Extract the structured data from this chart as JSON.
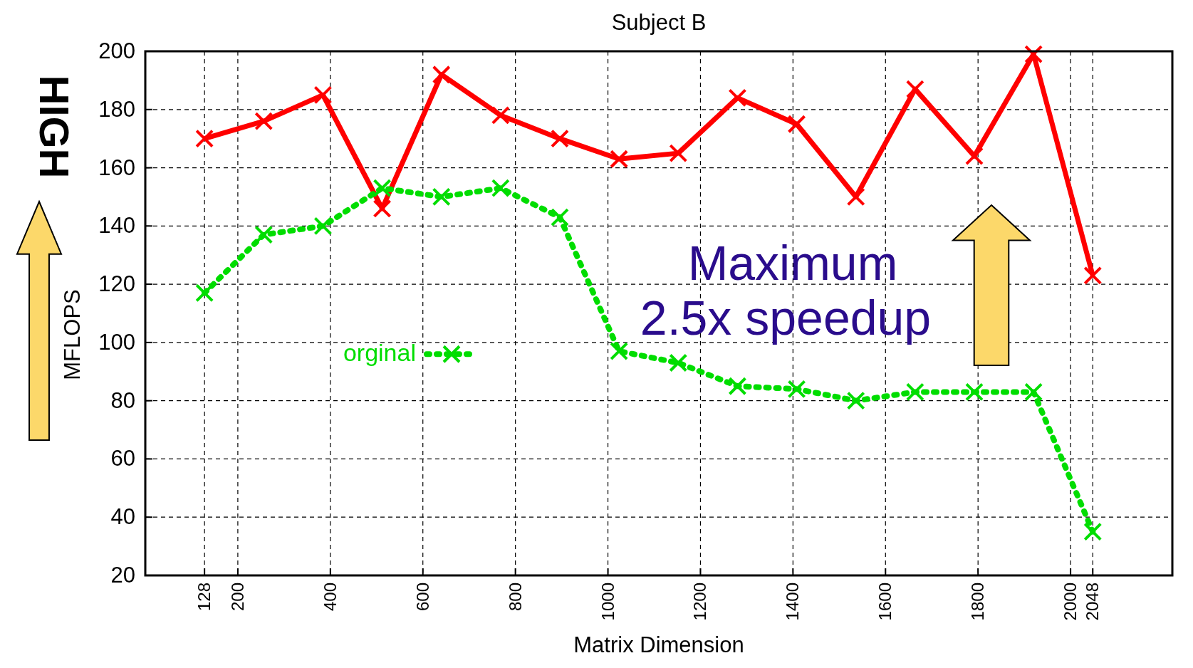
{
  "chart_data": {
    "type": "line",
    "title": "Subject B",
    "xlabel": "Matrix Dimension",
    "ylabel": "MFLOPS",
    "xlim": [
      0,
      2220
    ],
    "xticks": [
      128,
      200,
      400,
      600,
      800,
      1000,
      1200,
      1400,
      1600,
      1800,
      2000,
      2048
    ],
    "ylim": [
      20,
      200
    ],
    "yticks": [
      20,
      40,
      60,
      80,
      100,
      120,
      140,
      160,
      180,
      200
    ],
    "grid": true,
    "legend": "left",
    "marker": "cross",
    "x": [
      128,
      256,
      384,
      512,
      640,
      768,
      896,
      1024,
      1152,
      1280,
      1408,
      1536,
      1664,
      1792,
      1920,
      2048
    ],
    "series": [
      {
        "color": "#ff0000",
        "line_style": "solid",
        "values": [
          170,
          176,
          185,
          146,
          192,
          178,
          170,
          163,
          165,
          184,
          175,
          150,
          187,
          164,
          199,
          123
        ]
      },
      {
        "name": "orginal",
        "color": "#00dd00",
        "line_style": "dotted",
        "values": [
          117,
          137,
          140,
          153,
          150,
          153,
          143,
          97,
          93,
          85,
          84,
          80,
          83,
          83,
          83,
          35
        ]
      }
    ],
    "annotations": [
      "HIGH",
      "Maximum",
      "2.5x speedup"
    ]
  }
}
